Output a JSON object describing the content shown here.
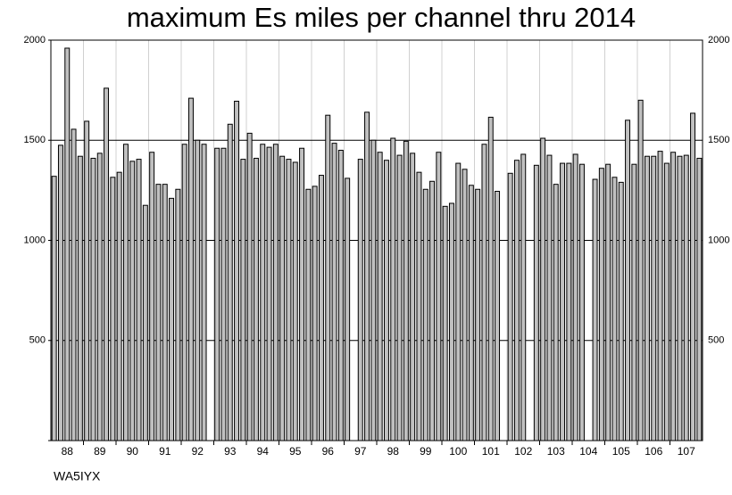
{
  "chart_data": {
    "type": "bar",
    "title": "maximum Es miles per channel thru 2014",
    "footer": "WA5IYX",
    "x": [
      88.1,
      88.3,
      88.5,
      88.7,
      88.9,
      89.1,
      89.3,
      89.5,
      89.7,
      89.9,
      90.1,
      90.3,
      90.5,
      90.7,
      90.9,
      91.1,
      91.3,
      91.5,
      91.7,
      91.9,
      92.1,
      92.3,
      92.5,
      92.7,
      92.9,
      93.1,
      93.3,
      93.5,
      93.7,
      93.9,
      94.1,
      94.3,
      94.5,
      94.7,
      94.9,
      95.1,
      95.3,
      95.5,
      95.7,
      95.9,
      96.1,
      96.3,
      96.5,
      96.7,
      96.9,
      97.1,
      97.3,
      97.5,
      97.7,
      97.9,
      98.1,
      98.3,
      98.5,
      98.7,
      98.9,
      99.1,
      99.3,
      99.5,
      99.7,
      99.9,
      100.1,
      100.3,
      100.5,
      100.7,
      100.9,
      101.1,
      101.3,
      101.5,
      101.7,
      101.9,
      102.1,
      102.3,
      102.5,
      102.7,
      102.9,
      103.1,
      103.3,
      103.5,
      103.7,
      103.9,
      104.1,
      104.3,
      104.5,
      104.7,
      104.9,
      105.1,
      105.3,
      105.5,
      105.7,
      105.9,
      106.1,
      106.3,
      106.5,
      106.7,
      106.9,
      107.1,
      107.3,
      107.5,
      107.7,
      107.9
    ],
    "values": [
      1320,
      1475,
      1960,
      1555,
      1420,
      1595,
      1410,
      1435,
      1760,
      1315,
      1340,
      1480,
      1395,
      1405,
      1175,
      1440,
      1280,
      1280,
      1210,
      1255,
      1480,
      1710,
      1500,
      1480,
      null,
      1460,
      1460,
      1580,
      1695,
      1405,
      1535,
      1410,
      1480,
      1465,
      1480,
      1420,
      1405,
      1390,
      1460,
      1255,
      1270,
      1325,
      1625,
      1485,
      1450,
      1310,
      null,
      1405,
      1640,
      1500,
      1440,
      1400,
      1510,
      1425,
      1495,
      1435,
      1340,
      1255,
      1295,
      1440,
      1170,
      1185,
      1385,
      1355,
      1275,
      1255,
      1480,
      1615,
      1245,
      null,
      1335,
      1400,
      1430,
      null,
      1375,
      1510,
      1425,
      1280,
      1385,
      1385,
      1430,
      1380,
      null,
      1305,
      1360,
      1380,
      1315,
      1290,
      1600,
      1380,
      1700,
      1420,
      1420,
      1445,
      1385,
      1440,
      1420,
      1425,
      1635,
      1410
    ],
    "color": "#c0c0c0",
    "xlim": [
      88,
      108
    ],
    "xticks": [
      {
        "value": 88.5,
        "label": "88"
      },
      {
        "value": 89.5,
        "label": "89"
      },
      {
        "value": 90.5,
        "label": "90"
      },
      {
        "value": 91.5,
        "label": "91"
      },
      {
        "value": 92.5,
        "label": "92"
      },
      {
        "value": 93.5,
        "label": "93"
      },
      {
        "value": 94.5,
        "label": "94"
      },
      {
        "value": 95.5,
        "label": "95"
      },
      {
        "value": 96.5,
        "label": "96"
      },
      {
        "value": 97.5,
        "label": "97"
      },
      {
        "value": 98.5,
        "label": "98"
      },
      {
        "value": 99.5,
        "label": "99"
      },
      {
        "value": 100.5,
        "label": "100"
      },
      {
        "value": 101.5,
        "label": "101"
      },
      {
        "value": 102.5,
        "label": "102"
      },
      {
        "value": 103.5,
        "label": "103"
      },
      {
        "value": 104.5,
        "label": "104"
      },
      {
        "value": 105.5,
        "label": "105"
      },
      {
        "value": 106.5,
        "label": "106"
      },
      {
        "value": 107.5,
        "label": "107"
      }
    ],
    "ylim": [
      0,
      2000
    ],
    "yticks": [
      500,
      1000,
      1500,
      2000
    ],
    "grid": true
  }
}
